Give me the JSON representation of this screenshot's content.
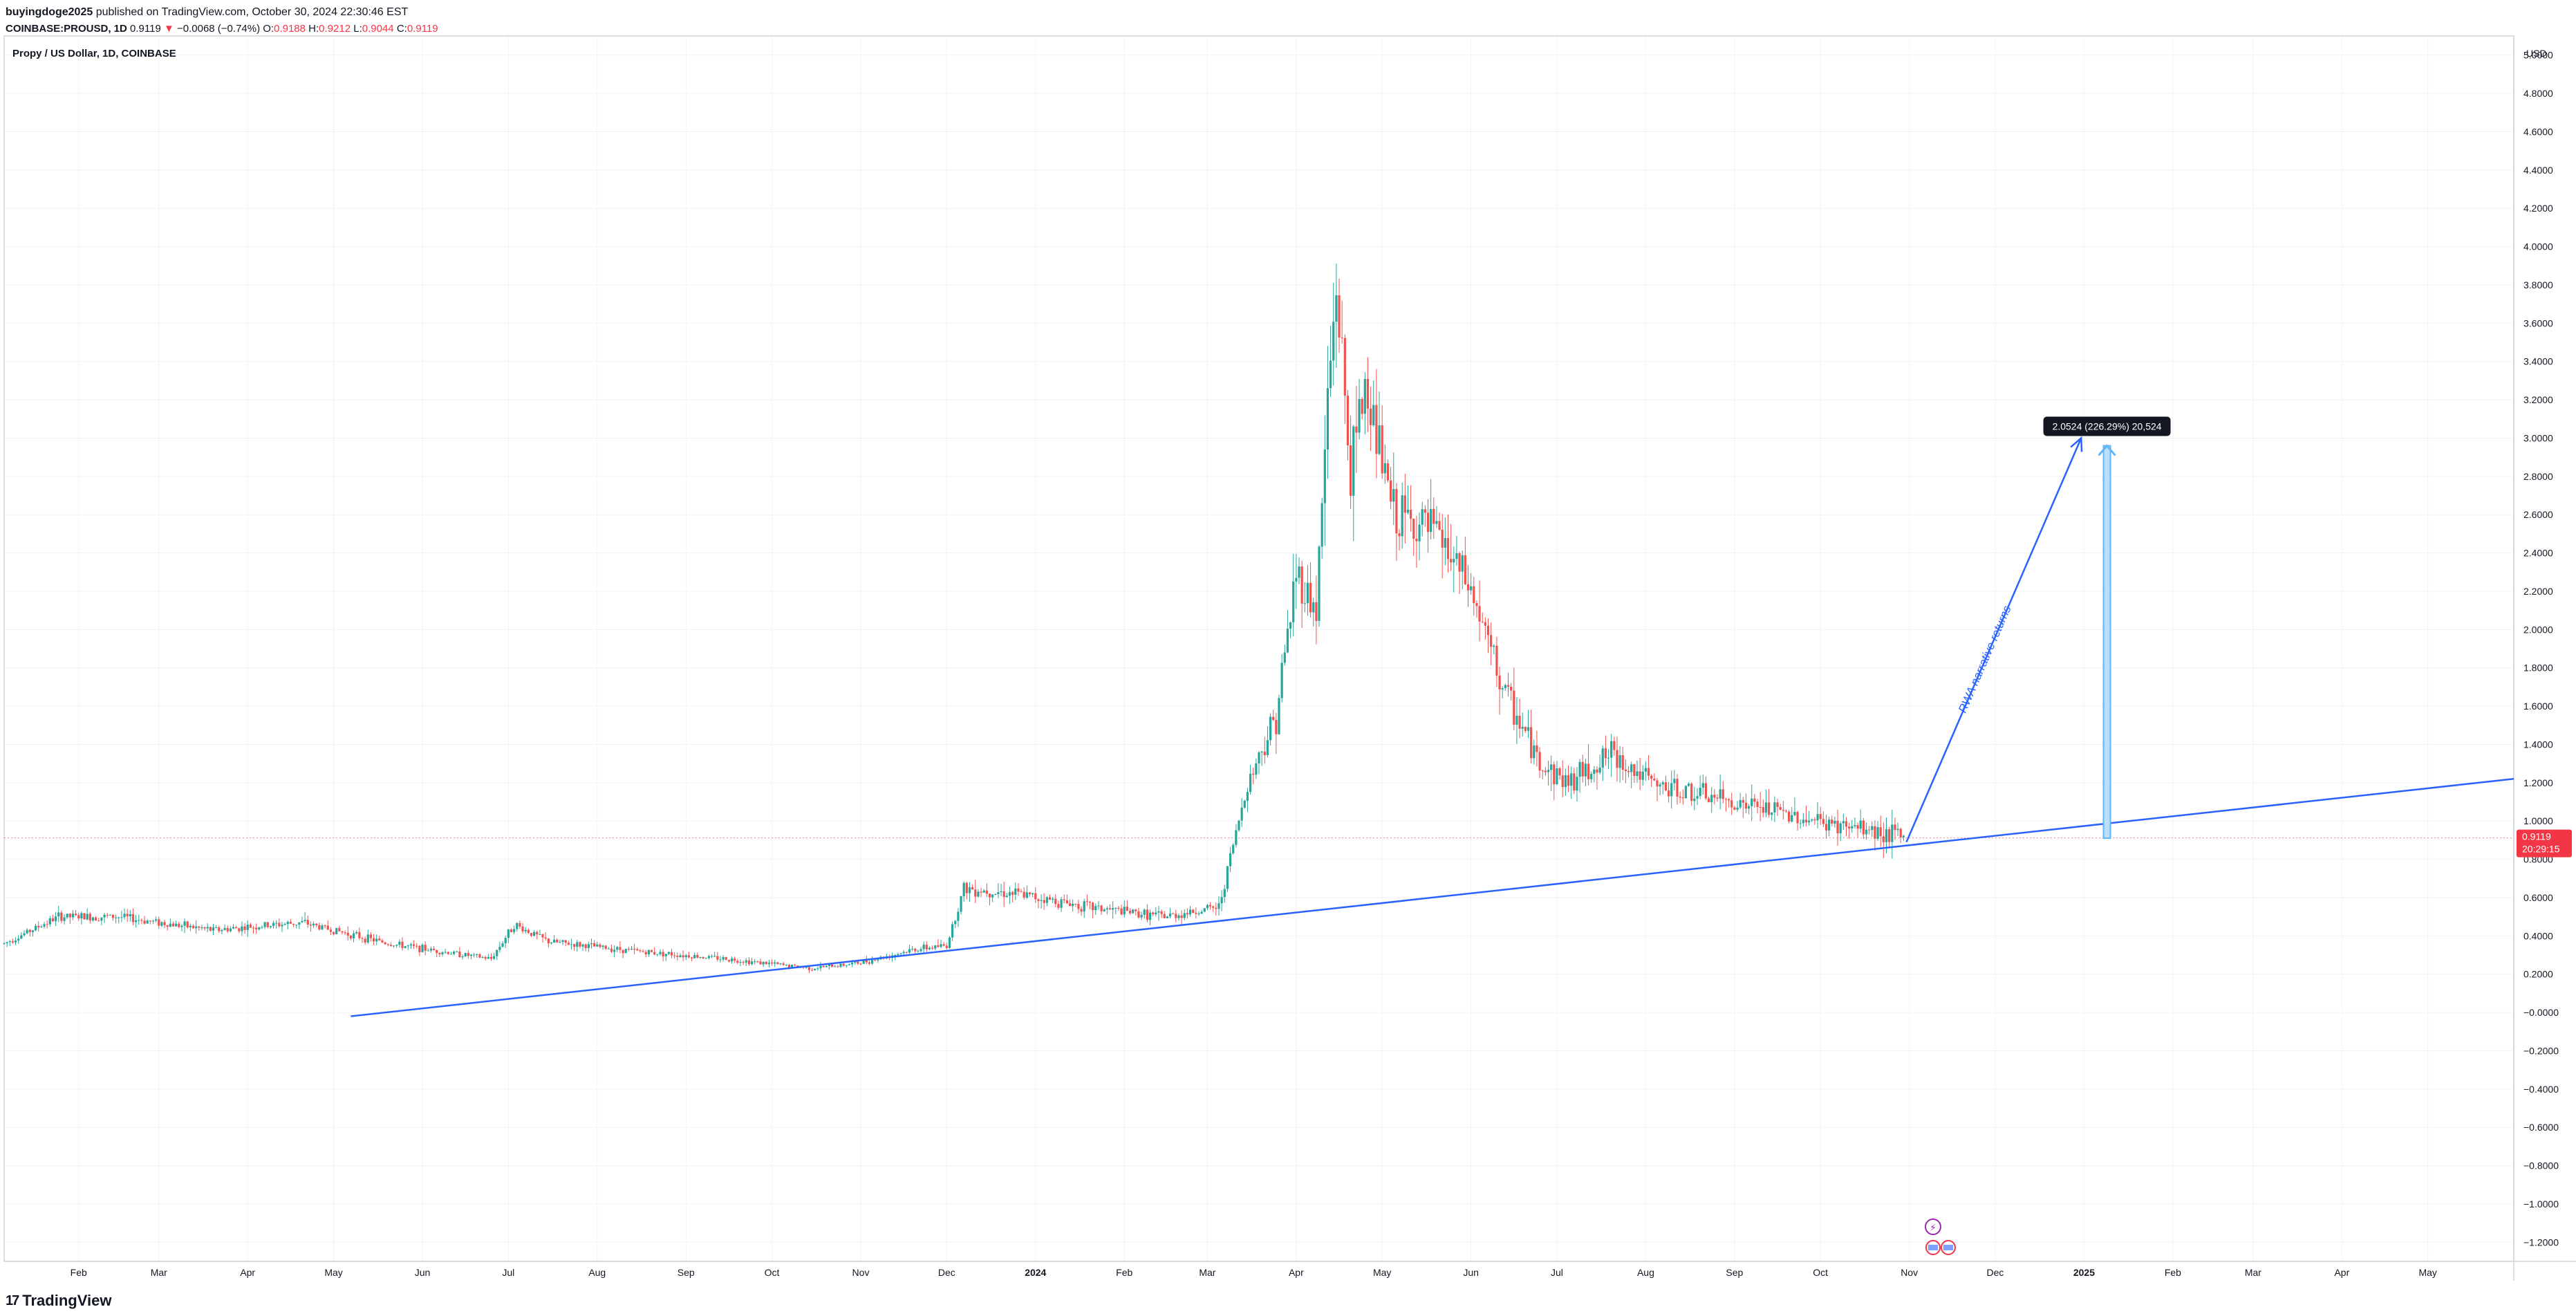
{
  "header": {
    "author": "buyingdoge2025",
    "published": "published on TradingView.com, October 30, 2024 22:30:46 EST",
    "symbol": "COINBASE:PROUSD, 1D",
    "price": "0.9119",
    "change_arrow": "▼",
    "change": "−0.0068 (−0.74%)",
    "o_label": "O:",
    "o_value": "0.9188",
    "h_label": "H:",
    "h_value": "0.9212",
    "l_label": "L:",
    "l_value": "0.9044",
    "c_label": "C:",
    "c_value": "0.9119"
  },
  "chart_title": "Propy / US Dollar, 1D, COINBASE",
  "currency_label": "USD",
  "price_tag": {
    "price": "0.9119",
    "countdown": "20:29:15"
  },
  "measure_label": "2.0524 (226.29%) 20,524",
  "trend_annotation": "RWA narrative returns",
  "footer": {
    "brand": "TradingView",
    "logo": "17"
  },
  "colors": {
    "up": "#26a69a",
    "down": "#ef5350",
    "trendline": "#2962ff",
    "measure": "#64b5f6",
    "price_line": "#f23645"
  },
  "chart_data": {
    "type": "candlestick",
    "title": "Propy / US Dollar, 1D, COINBASE",
    "y_axis_unit": "USD",
    "ylim": [
      -1.3,
      5.1
    ],
    "y_ticks": [
      "5.0000",
      "4.8000",
      "4.6000",
      "4.4000",
      "4.2000",
      "4.0000",
      "3.8000",
      "3.6000",
      "3.4000",
      "3.2000",
      "3.0000",
      "2.8000",
      "2.6000",
      "2.4000",
      "2.2000",
      "2.0000",
      "1.8000",
      "1.6000",
      "1.4000",
      "1.2000",
      "1.0000",
      "0.8000",
      "0.6000",
      "0.4000",
      "0.2000",
      "−0.0000",
      "−0.2000",
      "−0.4000",
      "−0.6000",
      "−0.8000",
      "−1.0000",
      "−1.2000"
    ],
    "x_ticks": [
      "Feb",
      "Mar",
      "Apr",
      "May",
      "Jun",
      "Jul",
      "Aug",
      "Sep",
      "Oct",
      "Nov",
      "Dec",
      "2024",
      "Feb",
      "Mar",
      "Apr",
      "May",
      "Jun",
      "Jul",
      "Aug",
      "Sep",
      "Oct",
      "Nov",
      "Dec",
      "2025",
      "Feb",
      "Mar",
      "Apr",
      "May"
    ],
    "x_range": [
      "2023-01-06",
      "2025-05-31"
    ],
    "grid": true,
    "last_price": 0.9119,
    "close_trend": [
      {
        "date": "2023-01-06",
        "close": 0.36
      },
      {
        "date": "2023-01-25",
        "close": 0.5
      },
      {
        "date": "2023-02-15",
        "close": 0.5
      },
      {
        "date": "2023-03-20",
        "close": 0.43
      },
      {
        "date": "2023-04-20",
        "close": 0.47
      },
      {
        "date": "2023-05-20",
        "close": 0.36
      },
      {
        "date": "2023-06-25",
        "close": 0.28
      },
      {
        "date": "2023-07-03",
        "close": 0.46
      },
      {
        "date": "2023-07-15",
        "close": 0.37
      },
      {
        "date": "2023-08-15",
        "close": 0.32
      },
      {
        "date": "2023-09-15",
        "close": 0.28
      },
      {
        "date": "2023-10-15",
        "close": 0.23
      },
      {
        "date": "2023-11-01",
        "close": 0.26
      },
      {
        "date": "2023-11-20",
        "close": 0.33
      },
      {
        "date": "2023-12-01",
        "close": 0.35
      },
      {
        "date": "2023-12-07",
        "close": 0.65
      },
      {
        "date": "2023-12-25",
        "close": 0.62
      },
      {
        "date": "2024-01-20",
        "close": 0.55
      },
      {
        "date": "2024-02-15",
        "close": 0.5
      },
      {
        "date": "2024-03-05",
        "close": 0.55
      },
      {
        "date": "2024-03-15",
        "close": 1.2
      },
      {
        "date": "2024-03-25",
        "close": 1.55
      },
      {
        "date": "2024-04-01",
        "close": 2.3
      },
      {
        "date": "2024-04-08",
        "close": 2.1
      },
      {
        "date": "2024-04-12",
        "close": 3.2
      },
      {
        "date": "2024-04-15",
        "close": 3.8
      },
      {
        "date": "2024-04-20",
        "close": 2.8
      },
      {
        "date": "2024-04-25",
        "close": 3.3
      },
      {
        "date": "2024-05-05",
        "close": 2.6
      },
      {
        "date": "2024-05-20",
        "close": 2.5
      },
      {
        "date": "2024-06-01",
        "close": 2.2
      },
      {
        "date": "2024-06-12",
        "close": 1.7
      },
      {
        "date": "2024-06-25",
        "close": 1.3
      },
      {
        "date": "2024-07-05",
        "close": 1.2
      },
      {
        "date": "2024-07-20",
        "close": 1.35
      },
      {
        "date": "2024-08-05",
        "close": 1.18
      },
      {
        "date": "2024-08-25",
        "close": 1.12
      },
      {
        "date": "2024-09-15",
        "close": 1.05
      },
      {
        "date": "2024-10-05",
        "close": 0.98
      },
      {
        "date": "2024-10-20",
        "close": 0.95
      },
      {
        "date": "2024-10-30",
        "close": 0.9119
      }
    ],
    "trendline": {
      "from": {
        "date": "2023-05-07",
        "value": -0.02
      },
      "to": {
        "date": "2025-05-31",
        "value": 1.22
      }
    },
    "annotation_arrow": {
      "from": {
        "date": "2024-10-31",
        "value": 0.89
      },
      "to": {
        "date": "2024-12-31",
        "value": 3.0
      }
    },
    "measure_arrow": {
      "date": "2025-01-09",
      "from": 0.91,
      "to": 2.96
    }
  }
}
